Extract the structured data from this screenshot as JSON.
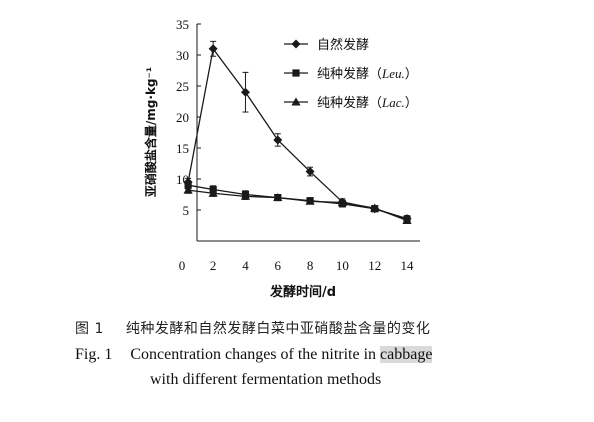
{
  "chart_data": {
    "type": "line",
    "title": "",
    "xlabel": "发酵时间/d",
    "ylabel": "亚硝酸盐含量/mg·kg⁻¹",
    "xlim": [
      0,
      14
    ],
    "ylim": [
      0,
      35
    ],
    "x_ticks": [
      "0",
      "2",
      "4",
      "6",
      "8",
      "10",
      "12",
      "14"
    ],
    "y_ticks": [
      "5",
      "10",
      "15",
      "20",
      "25",
      "30",
      "35"
    ],
    "grid": false,
    "legend_position": "top-center",
    "x": [
      0,
      2,
      4,
      6,
      8,
      10,
      12,
      14
    ],
    "series": [
      {
        "name": "自然发酵",
        "name_italic": "",
        "name_tail": "",
        "marker": "diamond",
        "values": [
          9.5,
          31.0,
          24.0,
          16.3,
          11.2,
          6.3,
          5.2,
          3.6
        ],
        "errors": [
          0.6,
          1.2,
          3.2,
          1.0,
          0.7,
          0.5,
          0.4,
          0.5
        ]
      },
      {
        "name": "纯种发酵（",
        "name_italic": "Leu.",
        "name_tail": "）",
        "marker": "square",
        "values": [
          9.0,
          8.3,
          7.5,
          7.0,
          6.5,
          6.0,
          5.2,
          3.5
        ],
        "errors": [
          0.6,
          0.6,
          0.6,
          0.4,
          0.4,
          0.5,
          0.4,
          0.4
        ]
      },
      {
        "name": "纯种发酵（",
        "name_italic": "Lac.",
        "name_tail": "）",
        "marker": "triangle",
        "values": [
          8.2,
          7.7,
          7.2,
          7.0,
          6.4,
          6.2,
          5.3,
          3.3
        ],
        "errors": [
          0.5,
          0.5,
          0.5,
          0.4,
          0.4,
          0.4,
          0.4,
          0.4
        ]
      }
    ]
  },
  "caption": {
    "cn_label": "图 1",
    "cn_text": "纯种发酵和自然发酵白菜中亚硝酸盐含量的变化",
    "en_label": "Fig. 1",
    "en_line1_pre": "Concentration changes of the nitrite in",
    "en_line1_hl": "cabbage",
    "en_line2": "with different fermentation methods"
  },
  "colors": {
    "line": "#1a1a1a",
    "highlight": "#d9d9d9"
  }
}
